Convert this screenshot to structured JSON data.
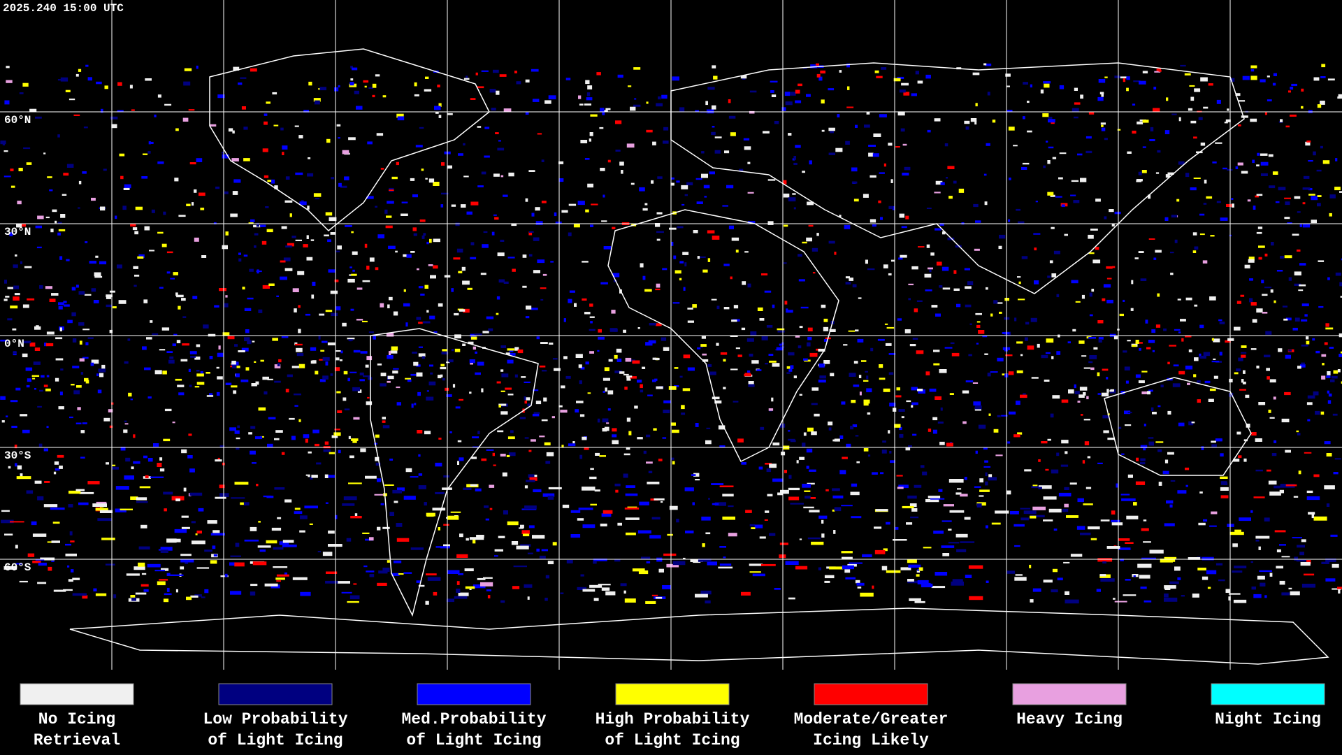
{
  "timestamp": "2025.240 15:00 UTC",
  "latitude_labels": [
    "60°N",
    "30°N",
    "0°N",
    "30°S",
    "60°S"
  ],
  "legend": [
    {
      "lines": [
        "No Icing",
        "Retrieval"
      ],
      "color": "#f0f0f0"
    },
    {
      "lines": [
        "Low Probability",
        "of Light Icing"
      ],
      "color": "#000080"
    },
    {
      "lines": [
        "Med.Probability",
        "of Light Icing"
      ],
      "color": "#0000ff"
    },
    {
      "lines": [
        "High Probability",
        "of Light Icing"
      ],
      "color": "#ffff00"
    },
    {
      "lines": [
        "Moderate/Greater",
        "Icing Likely"
      ],
      "color": "#ff0000"
    },
    {
      "lines": [
        "Heavy Icing"
      ],
      "color": "#e8a0e0"
    },
    {
      "lines": [
        "Night Icing"
      ],
      "color": "#00ffff"
    }
  ]
}
